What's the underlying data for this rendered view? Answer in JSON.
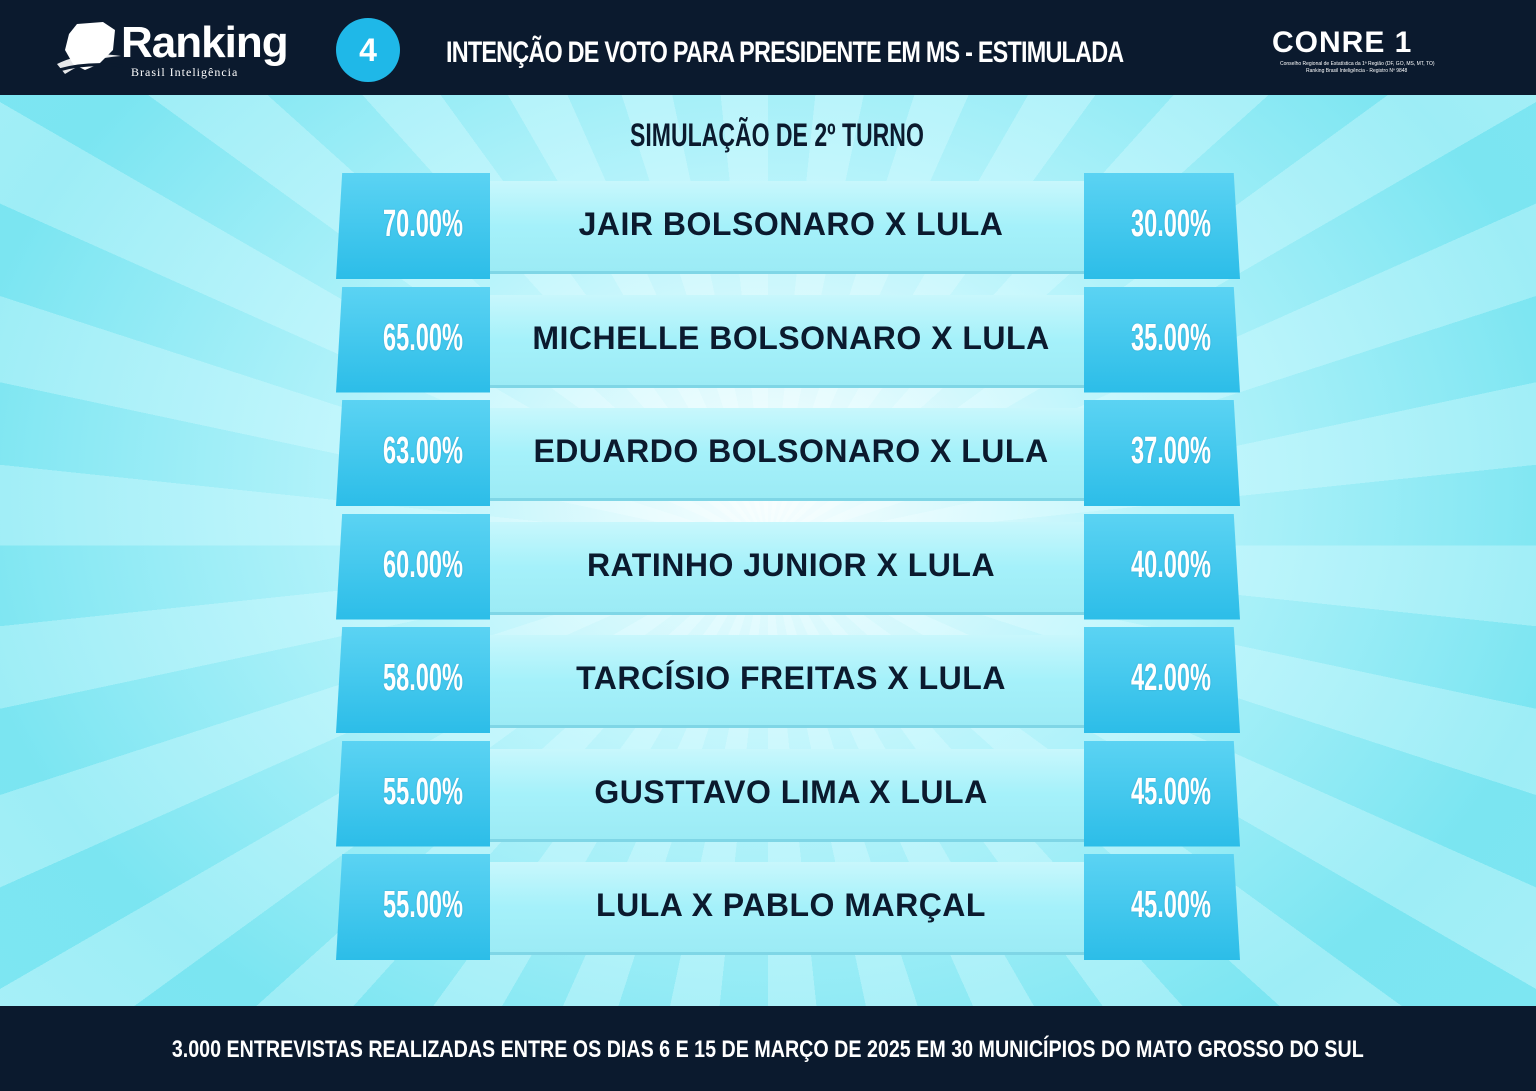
{
  "header": {
    "logo_text": "Ranking",
    "logo_subtext": "Brasil Inteligência",
    "badge_number": "4",
    "title": "INTENÇÃO DE VOTO PARA PRESIDENTE EM MS - ESTIMULADA",
    "partner_logo_text": "CONRE 1",
    "partner_line1": "Conselho Regional de Estatística da 1ª Região (DF, GO, MS, MT, TO)",
    "partner_line2": "Ranking Brasil Inteligência - Registro Nº 9848"
  },
  "subtitle": "SIMULAÇÃO DE 2º TURNO",
  "footer": {
    "note": "3.000 ENTREVISTAS REALIZADAS ENTRE OS DIAS 6 E 15 DE MARÇO DE 2025 EM 30 MUNICÍPIOS DO MATO GROSSO DO SUL"
  },
  "colors": {
    "header_bg": "#0b1a2e",
    "tab_blue": "#2cbde8",
    "strip_light": "#a5f1fa",
    "text_dark": "#0b1a2e"
  },
  "chart_data": {
    "type": "table",
    "title": "SIMULAÇÃO DE 2º TURNO",
    "rows": [
      {
        "matchup": "JAIR BOLSONARO X LULA",
        "left": "70.00%",
        "right": "30.00%",
        "left_value": 70.0,
        "right_value": 30.0
      },
      {
        "matchup": "MICHELLE BOLSONARO X LULA",
        "left": "65.00%",
        "right": "35.00%",
        "left_value": 65.0,
        "right_value": 35.0
      },
      {
        "matchup": "EDUARDO BOLSONARO X LULA",
        "left": "63.00%",
        "right": "37.00%",
        "left_value": 63.0,
        "right_value": 37.0
      },
      {
        "matchup": "RATINHO JUNIOR X LULA",
        "left": "60.00%",
        "right": "40.00%",
        "left_value": 60.0,
        "right_value": 40.0
      },
      {
        "matchup": "TARCÍSIO FREITAS X LULA",
        "left": "58.00%",
        "right": "42.00%",
        "left_value": 58.0,
        "right_value": 42.0
      },
      {
        "matchup": "GUSTTAVO LIMA X LULA",
        "left": "55.00%",
        "right": "45.00%",
        "left_value": 55.0,
        "right_value": 45.0
      },
      {
        "matchup": "LULA X PABLO MARÇAL",
        "left": "55.00%",
        "right": "45.00%",
        "left_value": 55.0,
        "right_value": 45.0
      }
    ]
  }
}
